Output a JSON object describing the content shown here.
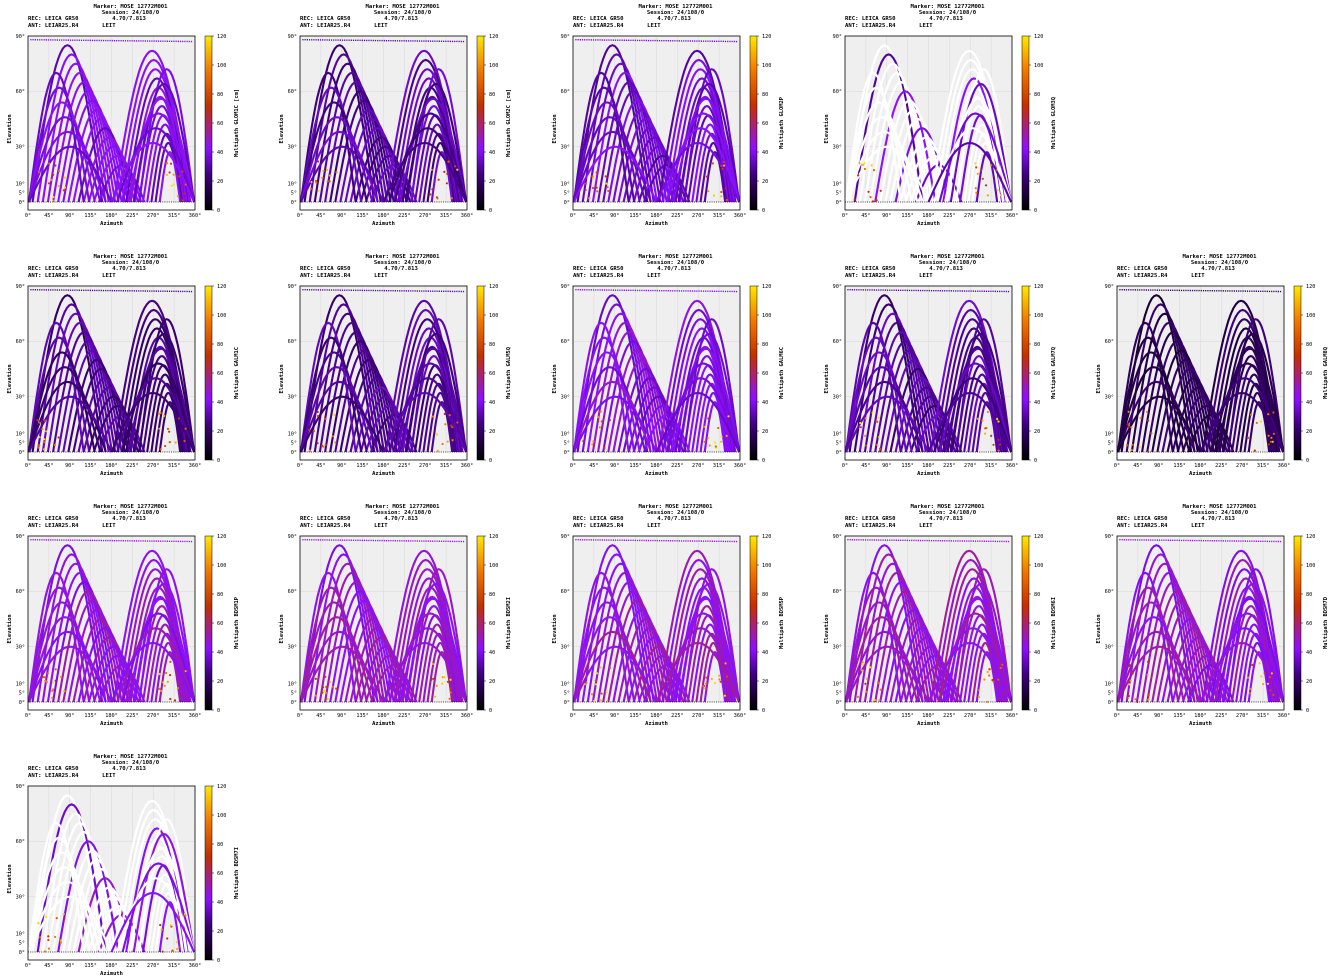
{
  "header": {
    "marker": "Marker: MOSE 12772M001",
    "session": "Session: 24/108/0",
    "rec_line": "REC: LEICA GR50          4.70/7.813",
    "ant_line": "ANT: LEIAR25.R4       LEIT"
  },
  "axis": {
    "xlabel": "Azimuth",
    "ylabel": "Elevation",
    "x_ticks": [
      "0°",
      "45°",
      "90°",
      "135°",
      "180°",
      "225°",
      "270°",
      "315°",
      "360°"
    ],
    "y_ticks": [
      "0°",
      "5°",
      "10°",
      "30°",
      "60°",
      "90°"
    ],
    "colorbar_ticks": [
      "0",
      "20",
      "40",
      "60",
      "80",
      "100",
      "120"
    ]
  },
  "colors": {
    "plot_bg": "#efefef",
    "low": "#000000",
    "mid_low": "#5a00b4",
    "mid": "#8a10ff",
    "mid_high": "#c43000",
    "high": "#ffe800"
  },
  "chart_data": [
    {
      "type": "scatter",
      "colorbar_label": "Multipath GLOM1C [cm]",
      "xlim": [
        0,
        360
      ],
      "ylim": [
        0,
        90
      ],
      "zlim": [
        0,
        120
      ],
      "level": 0.32
    },
    {
      "type": "scatter",
      "colorbar_label": "Multipath GLOM2C [cm]",
      "xlim": [
        0,
        360
      ],
      "ylim": [
        0,
        90
      ],
      "zlim": [
        0,
        120
      ],
      "level": 0.25
    },
    {
      "type": "scatter",
      "colorbar_label": "Multipath GLOM2P",
      "xlim": [
        0,
        360
      ],
      "ylim": [
        0,
        90
      ],
      "zlim": [
        0,
        120
      ],
      "level": 0.3
    },
    {
      "type": "scatter",
      "colorbar_label": "Multipath GLOM3Q",
      "xlim": [
        0,
        360
      ],
      "ylim": [
        0,
        90
      ],
      "zlim": [
        0,
        120
      ],
      "level": 0.3,
      "sparse": true
    },
    {
      "type": "scatter",
      "colorbar_label": "Multipath GALM1C",
      "xlim": [
        0,
        360
      ],
      "ylim": [
        0,
        90
      ],
      "zlim": [
        0,
        120
      ],
      "level": 0.22
    },
    {
      "type": "scatter",
      "colorbar_label": "Multipath GALM5Q",
      "xlim": [
        0,
        360
      ],
      "ylim": [
        0,
        90
      ],
      "zlim": [
        0,
        120
      ],
      "level": 0.24
    },
    {
      "type": "scatter",
      "colorbar_label": "Multipath GALM6C",
      "xlim": [
        0,
        360
      ],
      "ylim": [
        0,
        90
      ],
      "zlim": [
        0,
        120
      ],
      "level": 0.34
    },
    {
      "type": "scatter",
      "colorbar_label": "Multipath GALM7Q",
      "xlim": [
        0,
        360
      ],
      "ylim": [
        0,
        90
      ],
      "zlim": [
        0,
        120
      ],
      "level": 0.24
    },
    {
      "type": "scatter",
      "colorbar_label": "Multipath GALM8Q",
      "xlim": [
        0,
        360
      ],
      "ylim": [
        0,
        90
      ],
      "zlim": [
        0,
        120
      ],
      "level": 0.15
    },
    {
      "type": "scatter",
      "colorbar_label": "Multipath BDSM1P",
      "xlim": [
        0,
        360
      ],
      "ylim": [
        0,
        90
      ],
      "zlim": [
        0,
        120
      ],
      "level": 0.38
    },
    {
      "type": "scatter",
      "colorbar_label": "Multipath BDSM2I",
      "xlim": [
        0,
        360
      ],
      "ylim": [
        0,
        90
      ],
      "zlim": [
        0,
        120
      ],
      "level": 0.38
    },
    {
      "type": "scatter",
      "colorbar_label": "Multipath BDSM5P",
      "xlim": [
        0,
        360
      ],
      "ylim": [
        0,
        90
      ],
      "zlim": [
        0,
        120
      ],
      "level": 0.4
    },
    {
      "type": "scatter",
      "colorbar_label": "Multipath BDSM6I",
      "xlim": [
        0,
        360
      ],
      "ylim": [
        0,
        90
      ],
      "zlim": [
        0,
        120
      ],
      "level": 0.4
    },
    {
      "type": "scatter",
      "colorbar_label": "Multipath BDSM7D",
      "xlim": [
        0,
        360
      ],
      "ylim": [
        0,
        90
      ],
      "zlim": [
        0,
        120
      ],
      "level": 0.38
    },
    {
      "type": "scatter",
      "colorbar_label": "Multipath BDSM7I",
      "xlim": [
        0,
        360
      ],
      "ylim": [
        0,
        90
      ],
      "zlim": [
        0,
        120
      ],
      "level": 0.35,
      "sparse": true
    }
  ]
}
